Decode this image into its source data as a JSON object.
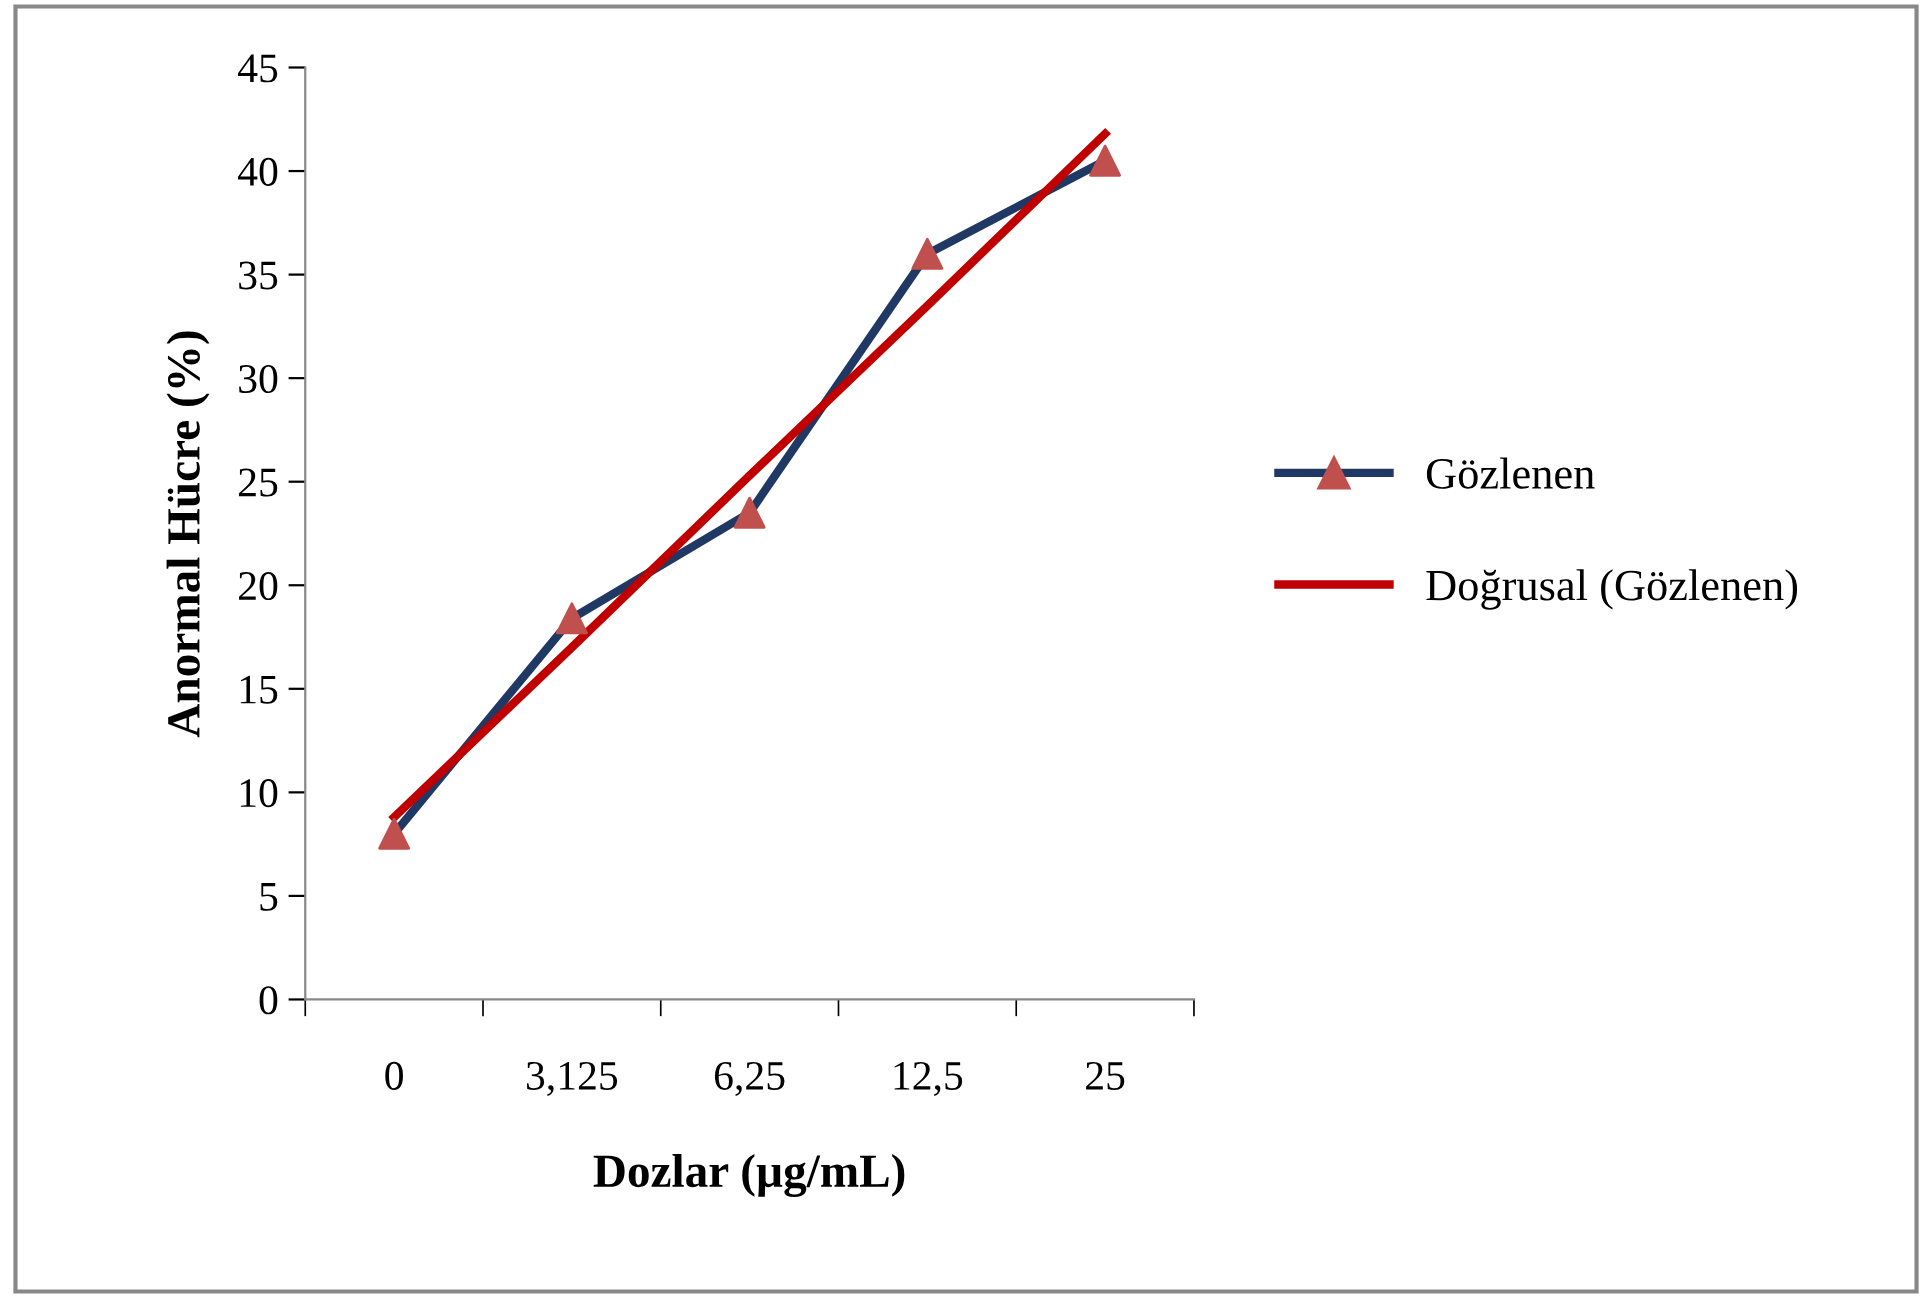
{
  "chart_data": {
    "type": "line",
    "xlabel": "Dozlar (µg/mL)",
    "ylabel": "Anormal Hücre (%)",
    "categories": [
      "0",
      "3,125",
      "6,25",
      "12,5",
      "25"
    ],
    "series": [
      {
        "name": "Gözlenen",
        "color": "#1f3864",
        "colors": [
          "#c0504d",
          "#c0504d",
          "#c0504d",
          "#c0504d",
          "#c0504d"
        ],
        "marker": "triangle",
        "values": [
          8,
          18.4,
          23.5,
          36,
          40.5
        ]
      },
      {
        "name": "Doğrusal (Gözlenen)",
        "color": "#c00000",
        "marker": "none",
        "values": [
          8.8,
          17.0,
          25.3,
          33.5,
          41.8
        ]
      }
    ],
    "ylim": [
      0,
      45
    ],
    "yticks": [
      0,
      5,
      10,
      15,
      20,
      25,
      30,
      35,
      40,
      45
    ],
    "grid": false,
    "legend": "right",
    "line_style": "solid"
  }
}
